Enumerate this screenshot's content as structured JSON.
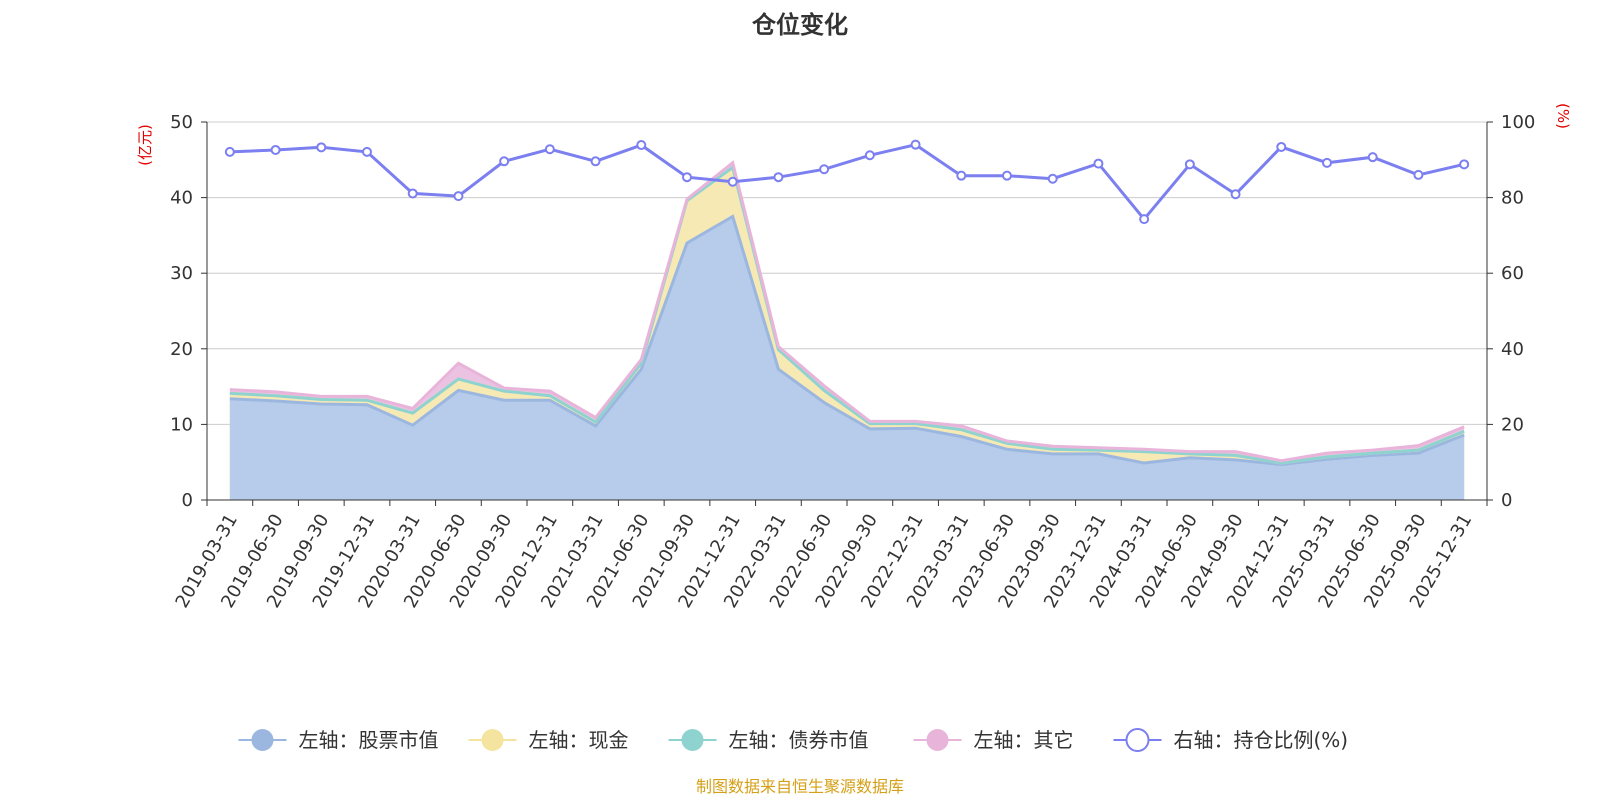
{
  "chart_data": {
    "type": "area",
    "title": "仓位变化",
    "left_unit": "(亿元)",
    "right_unit": "(%)",
    "left_ylim": [
      0,
      50
    ],
    "right_ylim": [
      0,
      100
    ],
    "left_ticks": [
      "0",
      "10",
      "20",
      "30",
      "40",
      "50"
    ],
    "right_ticks": [
      "0",
      "20",
      "40",
      "60",
      "80",
      "100"
    ],
    "categories": [
      "2019-03-31",
      "2019-06-30",
      "2019-09-30",
      "2019-12-31",
      "2020-03-31",
      "2020-06-30",
      "2020-09-30",
      "2020-12-31",
      "2021-03-31",
      "2021-06-30",
      "2021-09-30",
      "2021-12-31",
      "2022-03-31",
      "2022-06-30",
      "2022-09-30",
      "2022-12-31",
      "2023-03-31",
      "2023-06-30",
      "2023-09-30",
      "2023-12-31",
      "2024-03-31",
      "2024-06-30",
      "2024-09-30",
      "2024-12-31",
      "2025-03-31",
      "2025-06-30",
      "2025-09-30",
      "2025-12-31"
    ],
    "series": [
      {
        "name": "左轴：股票市值",
        "axis": "left",
        "color": "#9bb7e0",
        "fill": "#b7cbea",
        "values": [
          13.4,
          13.1,
          12.7,
          12.6,
          9.9,
          14.5,
          13.2,
          13.2,
          9.8,
          17.3,
          34.0,
          37.5,
          17.3,
          12.9,
          9.4,
          9.5,
          8.4,
          6.7,
          6.1,
          6.1,
          4.9,
          5.6,
          5.3,
          4.7,
          5.4,
          5.9,
          6.2,
          8.6
        ]
      },
      {
        "name": "左轴：现金",
        "axis": "left",
        "color": "#f5e3a0",
        "fill": "#f7e9b4",
        "values": [
          0.7,
          0.7,
          0.6,
          0.6,
          1.6,
          1.5,
          1.2,
          0.6,
          0.5,
          0.8,
          5.6,
          6.5,
          2.6,
          1.6,
          0.7,
          0.6,
          0.9,
          0.8,
          0.6,
          0.5,
          1.5,
          0.5,
          0.6,
          0.2,
          0.3,
          0.3,
          0.4,
          0.5
        ]
      },
      {
        "name": "左轴：债券市值",
        "axis": "left",
        "color": "#8fd3d1",
        "fill": "#8fd3d1",
        "values": [
          0,
          0,
          0,
          0,
          0,
          0,
          0,
          0,
          0,
          0,
          0,
          0,
          0,
          0,
          0,
          0,
          0,
          0,
          0,
          0,
          0,
          0,
          0,
          0,
          0,
          0,
          0,
          0
        ]
      },
      {
        "name": "左轴：其它",
        "axis": "left",
        "color": "#e8b4da",
        "fill": "#ecc2e2",
        "values": [
          0.5,
          0.5,
          0.4,
          0.5,
          0.6,
          2.1,
          0.4,
          0.6,
          0.6,
          0.5,
          0.2,
          0.6,
          0.4,
          0.6,
          0.3,
          0.3,
          0.5,
          0.3,
          0.4,
          0.3,
          0.3,
          0.3,
          0.5,
          0.3,
          0.5,
          0.4,
          0.6,
          0.6
        ]
      },
      {
        "name": "右轴：持仓比例(%)",
        "axis": "right",
        "color": "#7b7ff0",
        "values": [
          92.1,
          92.6,
          93.3,
          92.1,
          81.1,
          80.4,
          89.6,
          92.8,
          89.6,
          93.9,
          85.4,
          84.2,
          85.4,
          87.5,
          91.2,
          94.0,
          85.8,
          85.8,
          85.0,
          89.0,
          74.3,
          88.8,
          80.9,
          93.4,
          89.2,
          90.7,
          86.0,
          88.8
        ]
      }
    ],
    "legend_position": "bottom-center",
    "source_note": "制图数据来自恒生聚源数据库",
    "source_color": "#d4a017",
    "unit_color": "#e00000",
    "grid": true
  }
}
